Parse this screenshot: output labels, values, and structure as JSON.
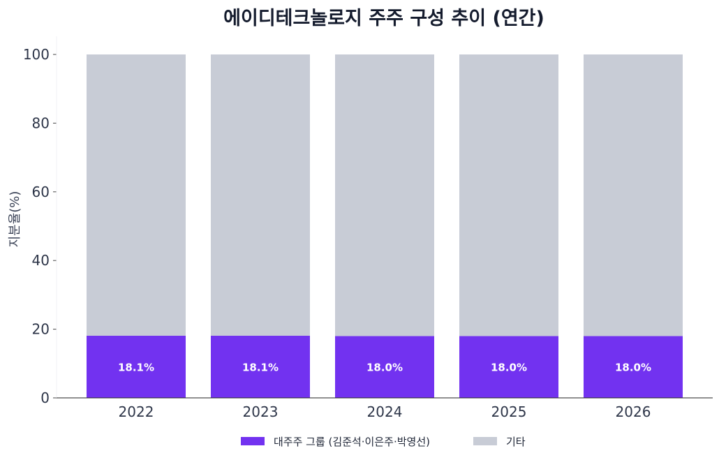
{
  "chart_data": {
    "type": "bar",
    "stacked": true,
    "title": "에이디테크놀로지 주주 구성 추이 (연간)",
    "xlabel": "",
    "ylabel": "지분율(%)",
    "categories": [
      "2022",
      "2023",
      "2024",
      "2025",
      "2026"
    ],
    "ylim": [
      0,
      100
    ],
    "yticks": [
      0,
      20,
      40,
      60,
      80,
      100
    ],
    "series": [
      {
        "name": "대주주 그룹 (김준석·이은주·박영선)",
        "values": [
          18.1,
          18.1,
          18.0,
          18.0,
          18.0
        ],
        "color": "#7232f0"
      },
      {
        "name": "기타",
        "values": [
          81.9,
          81.9,
          82.0,
          82.0,
          82.0
        ],
        "color": "#c8ccd6"
      }
    ],
    "data_labels": [
      "18.1%",
      "18.1%",
      "18.0%",
      "18.0%",
      "18.0%"
    ],
    "grid": false,
    "legend_position": "bottom-center"
  }
}
